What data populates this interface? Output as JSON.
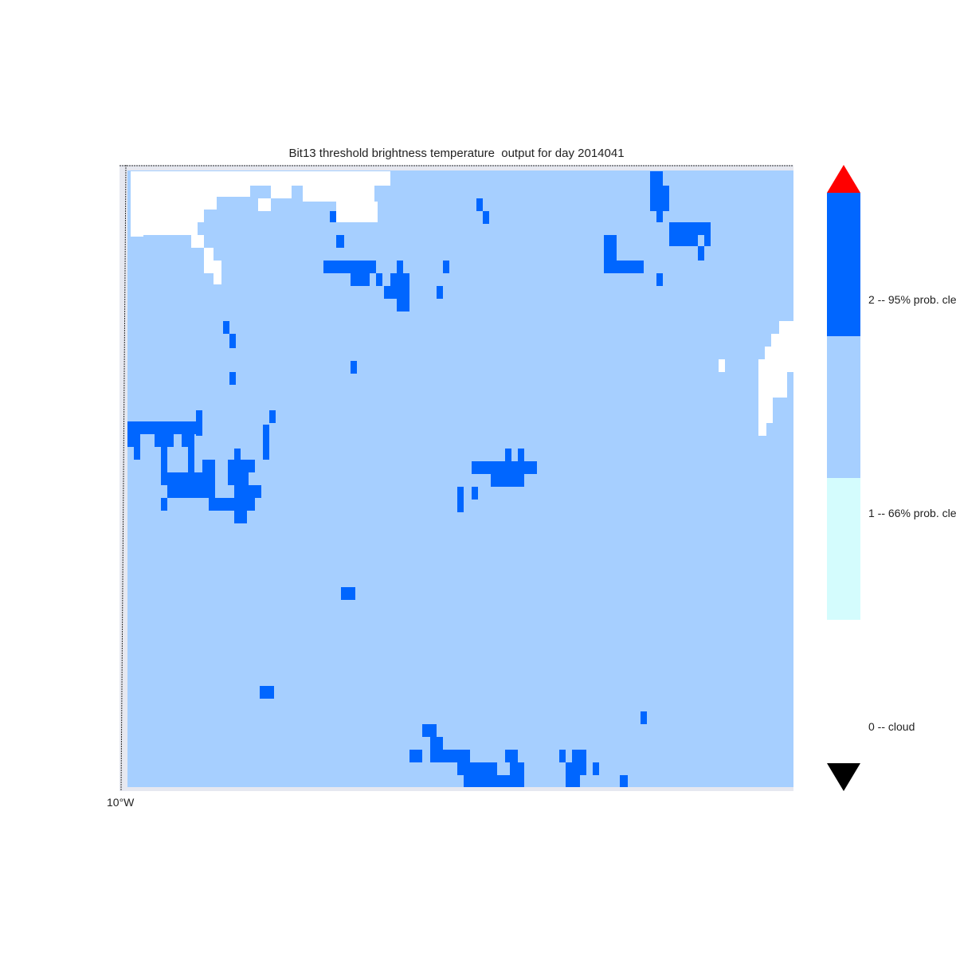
{
  "map": {
    "title": "Bit13 threshold brightness temperature  output for day 2014041",
    "lon_label": "10°W"
  },
  "legend": {
    "labels": [
      "2 -- 95% prob. cle",
      "1 -- 66% prob. cle",
      "0 -- cloud"
    ],
    "colors": {
      "class2": "#0066ff",
      "class1_upper": "#a6cfff",
      "class1_lower": "#d4fcfd",
      "class0": "#ffffff",
      "over": "#ff0000",
      "under": "#000000"
    }
  },
  "map_colors": {
    "background": "#a6cfff",
    "cloud": "#ffffff",
    "clear95": "#0066ff",
    "frame": "#e6e8f0"
  }
}
